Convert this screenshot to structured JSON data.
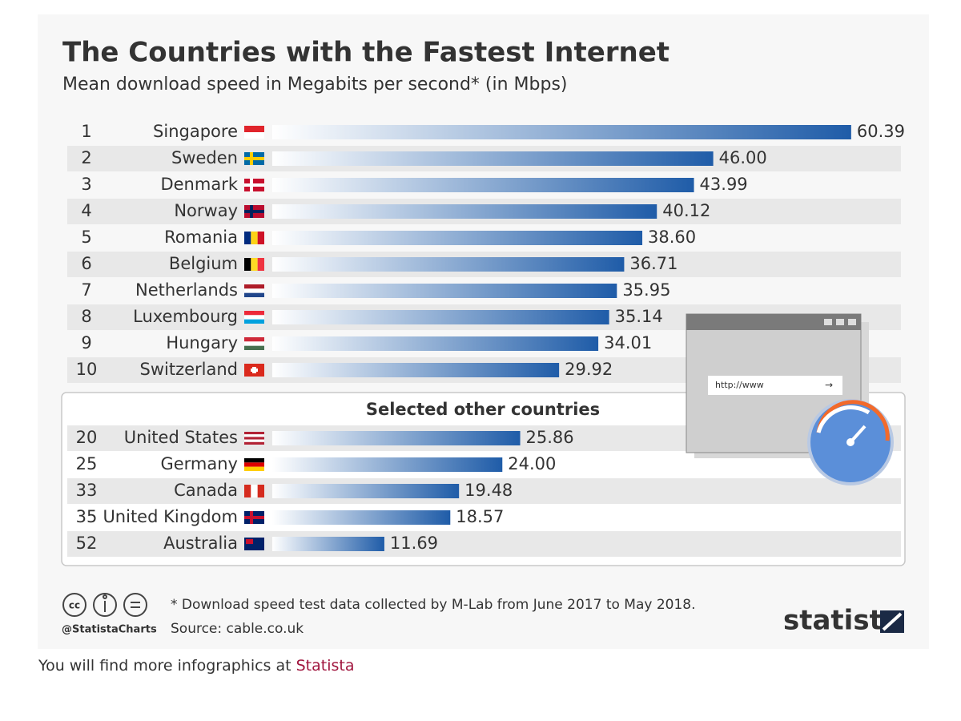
{
  "chart_data": [
    {
      "type": "bar",
      "title": "The Countries with the Fastest Internet",
      "subtitle": "Mean download speed in Megabits per second* (in Mbps)",
      "ranks": [
        1,
        2,
        3,
        4,
        5,
        6,
        7,
        8,
        9,
        10
      ],
      "categories": [
        "Singapore",
        "Sweden",
        "Denmark",
        "Norway",
        "Romania",
        "Belgium",
        "Netherlands",
        "Luxembourg",
        "Hungary",
        "Switzerland"
      ],
      "values": [
        60.39,
        46.0,
        43.99,
        40.12,
        38.6,
        36.71,
        35.95,
        35.14,
        34.01,
        29.92
      ],
      "value_labels": [
        "60.39",
        "46.00",
        "43.99",
        "40.12",
        "38.60",
        "36.71",
        "35.95",
        "35.14",
        "34.01",
        "29.92"
      ],
      "color": "#1f5ca8"
    },
    {
      "type": "bar",
      "title": "Selected other countries",
      "ranks": [
        20,
        25,
        33,
        35,
        52
      ],
      "categories": [
        "United States",
        "Germany",
        "Canada",
        "United Kingdom",
        "Australia"
      ],
      "values": [
        25.86,
        24.0,
        19.48,
        18.57,
        11.69
      ],
      "value_labels": [
        "25.86",
        "24.00",
        "19.48",
        "18.57",
        "11.69"
      ],
      "color": "#1f5ca8"
    }
  ],
  "illustration_text": "http://www",
  "credit": "@StatistaCharts",
  "footnote": "* Download speed test data collected by M-Lab from June 2017 to May 2018.",
  "source": "Source: cable.co.uk",
  "logo": "statista",
  "footer": {
    "text": "You will find more infographics at",
    "link": "Statista"
  }
}
